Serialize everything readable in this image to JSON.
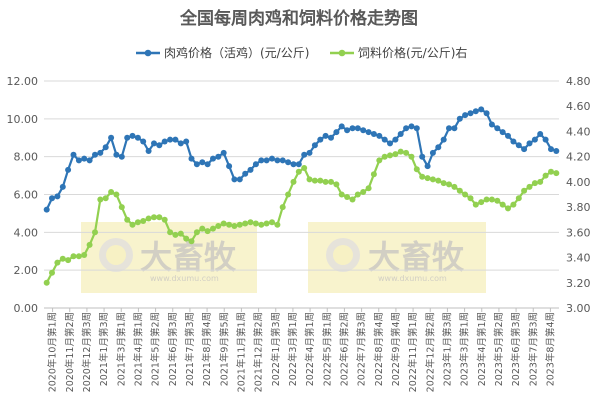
{
  "chart_data": {
    "type": "line",
    "title": "全国每周肉鸡和饲料价格走势图",
    "legend": {
      "placement": "top",
      "items": [
        "肉鸡价格（活鸡）(元/公斤)",
        "饲料价格(元/公斤)右"
      ]
    },
    "grid": true,
    "y_left": {
      "range": [
        0,
        12
      ],
      "ticks": [
        "0.00",
        "2.00",
        "4.00",
        "6.00",
        "8.00",
        "10.00",
        "12.00"
      ]
    },
    "y_right": {
      "range": [
        3.0,
        4.8
      ],
      "ticks": [
        "3.00",
        "3.20",
        "3.40",
        "3.60",
        "3.80",
        "4.00",
        "4.20",
        "4.40",
        "4.60",
        "4.80"
      ]
    },
    "x_tick_labels": [
      "2020年10月第1周",
      "2020年11月第2周",
      "2020年12月第3周",
      "2021年1月第3周",
      "2021年3月第1周",
      "2021年4月第1周",
      "2021年5月第2周",
      "2021年6月第3周",
      "2021年7月第3周",
      "2021年8月第4周",
      "2021年9月第5周",
      "2021年11月第1周",
      "2021年12月第2周",
      "2022年1月第3周",
      "2022年3月第1周",
      "2022年4月第1周",
      "2022年5月第1周",
      "2022年6月第2周",
      "2022年7月第3周",
      "2022年8月第4周",
      "2022年9月第4周",
      "2022年11月第1周",
      "2022年12月第2周",
      "2023年1月第3周",
      "2023年3月第1周",
      "2023年4月第1周",
      "2023年5月第2周",
      "2023年6月第3周",
      "2023年7月第3周",
      "2023年8月第4周"
    ],
    "series": [
      {
        "name": "肉鸡价格（活鸡）(元/公斤)",
        "axis": "left",
        "color": "#2e75b6",
        "values": [
          5.2,
          5.8,
          5.9,
          6.4,
          7.3,
          8.1,
          7.8,
          7.9,
          7.8,
          8.1,
          8.2,
          8.5,
          9.0,
          8.1,
          8.0,
          9.0,
          9.1,
          9.0,
          8.8,
          8.3,
          8.7,
          8.6,
          8.8,
          8.9,
          8.9,
          8.7,
          8.8,
          7.9,
          7.6,
          7.7,
          7.6,
          7.9,
          8.0,
          8.2,
          7.5,
          6.8,
          6.8,
          7.1,
          7.3,
          7.6,
          7.8,
          7.8,
          7.9,
          7.8,
          7.8,
          7.7,
          7.6,
          7.6,
          8.1,
          8.2,
          8.6,
          8.9,
          9.1,
          9.0,
          9.3,
          9.6,
          9.4,
          9.5,
          9.5,
          9.4,
          9.3,
          9.2,
          9.1,
          8.9,
          8.7,
          8.9,
          9.2,
          9.5,
          9.6,
          9.5,
          8.0,
          7.5,
          8.2,
          8.5,
          8.9,
          9.5,
          9.5,
          10.0,
          10.2,
          10.3,
          10.4,
          10.5,
          10.3,
          9.7,
          9.5,
          9.3,
          9.1,
          8.8,
          8.6,
          8.4,
          8.7,
          8.9,
          9.2,
          8.9,
          8.4,
          8.3
        ]
      },
      {
        "name": "饲料价格(元/公斤)右",
        "axis": "right",
        "color": "#92d050",
        "values": [
          3.2,
          3.28,
          3.36,
          3.39,
          3.38,
          3.41,
          3.41,
          3.42,
          3.5,
          3.6,
          3.86,
          3.87,
          3.92,
          3.9,
          3.8,
          3.7,
          3.66,
          3.68,
          3.69,
          3.71,
          3.72,
          3.72,
          3.7,
          3.6,
          3.58,
          3.59,
          3.55,
          3.53,
          3.6,
          3.63,
          3.61,
          3.63,
          3.65,
          3.67,
          3.66,
          3.65,
          3.66,
          3.67,
          3.68,
          3.67,
          3.66,
          3.67,
          3.68,
          3.66,
          3.8,
          3.9,
          4.0,
          4.08,
          4.11,
          4.02,
          4.01,
          4.01,
          4.0,
          4.0,
          3.98,
          3.9,
          3.88,
          3.86,
          3.9,
          3.92,
          3.95,
          4.06,
          4.17,
          4.2,
          4.21,
          4.22,
          4.24,
          4.23,
          4.2,
          4.1,
          4.04,
          4.03,
          4.02,
          4.01,
          3.99,
          3.98,
          3.96,
          3.93,
          3.9,
          3.87,
          3.82,
          3.84,
          3.86,
          3.86,
          3.85,
          3.82,
          3.79,
          3.82,
          3.87,
          3.93,
          3.96,
          3.99,
          4.0,
          4.05,
          4.08,
          4.07
        ]
      }
    ]
  },
  "watermark": {
    "brand": "大畜牧",
    "url": "www.dxumu.com"
  }
}
